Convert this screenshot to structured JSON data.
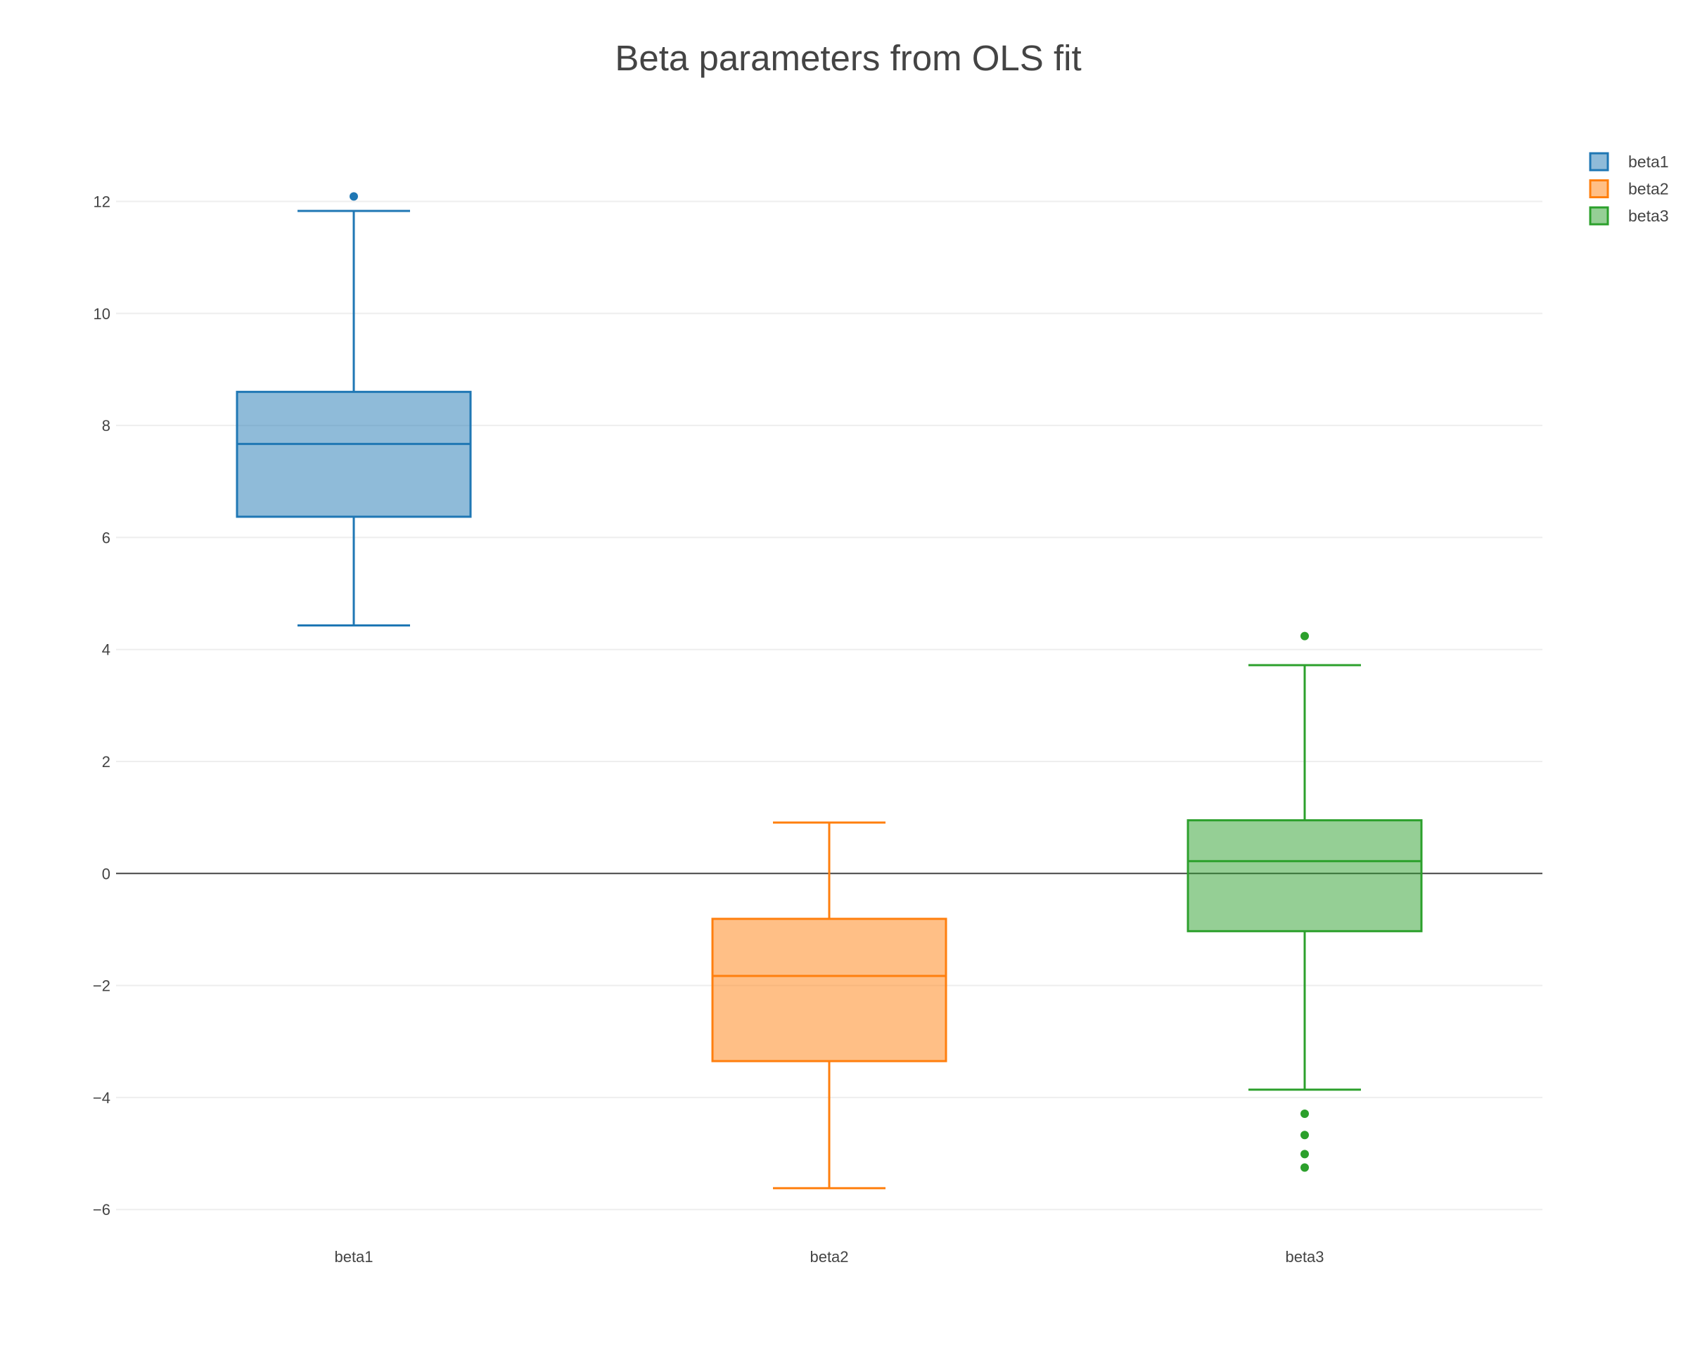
{
  "chart_data": {
    "type": "box",
    "title": "Beta parameters from OLS fit",
    "xlabel": "",
    "ylabel": "",
    "categories": [
      "beta1",
      "beta2",
      "beta3"
    ],
    "ylim": [
      -6.6,
      13.5
    ],
    "yticks": [
      -6,
      -4,
      -2,
      0,
      2,
      4,
      6,
      8,
      10,
      12
    ],
    "ytick_labels": [
      "−6",
      "−4",
      "−2",
      "0",
      "2",
      "4",
      "6",
      "8",
      "10",
      "12"
    ],
    "grid": true,
    "zeroline": true,
    "legend_position": "top-right",
    "series": [
      {
        "name": "beta1",
        "category": "beta1",
        "color": "#1f77b4",
        "fill": "rgba(31,119,180,0.5)",
        "lower_whisker": 4.43,
        "q1": 6.37,
        "median": 7.67,
        "q3": 8.6,
        "upper_whisker": 11.83,
        "outliers": [
          12.09
        ]
      },
      {
        "name": "beta2",
        "category": "beta2",
        "color": "#ff7f0e",
        "fill": "rgba(255,127,14,0.5)",
        "lower_whisker": -5.62,
        "q1": -3.35,
        "median": -1.83,
        "q3": -0.81,
        "upper_whisker": 0.91,
        "outliers": []
      },
      {
        "name": "beta3",
        "category": "beta3",
        "color": "#2ca02c",
        "fill": "rgba(44,160,44,0.5)",
        "lower_whisker": -3.86,
        "q1": -1.03,
        "median": 0.22,
        "q3": 0.95,
        "upper_whisker": 3.72,
        "outliers": [
          4.24,
          -4.29,
          -4.67,
          -5.01,
          -5.25
        ]
      }
    ]
  }
}
